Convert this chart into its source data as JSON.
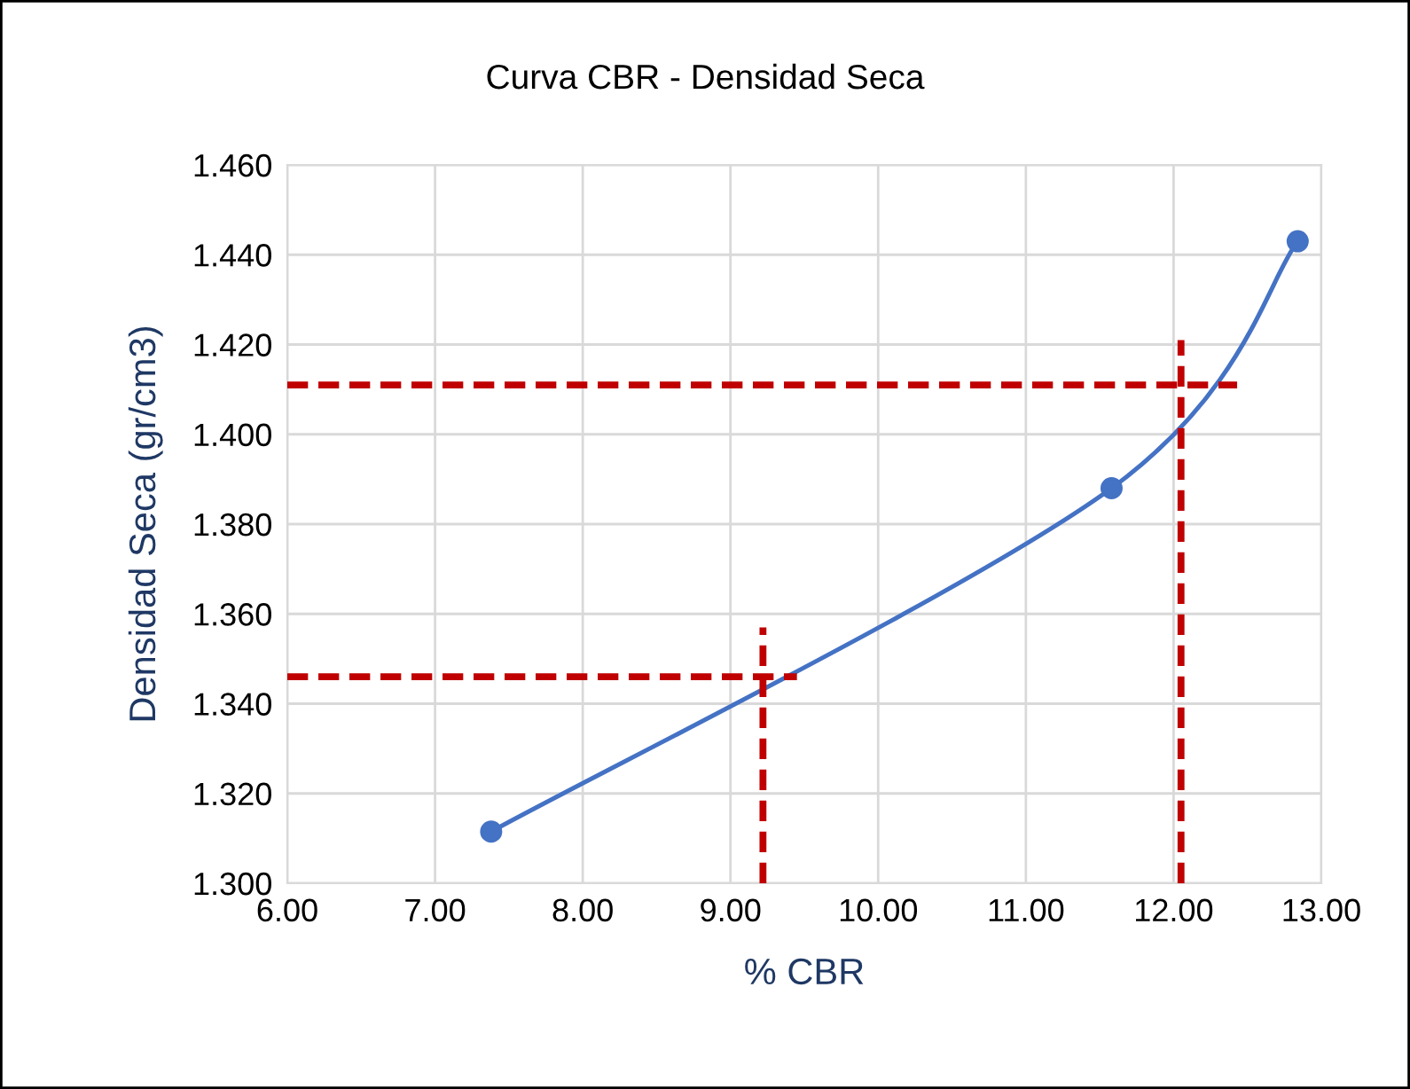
{
  "chart_data": {
    "type": "line",
    "title": "Curva CBR - Densidad Seca",
    "xlabel": "% CBR",
    "ylabel": "Densidad Seca (gr/cm3)",
    "series": [
      {
        "color": "#4472c4",
        "x": [
          7.38,
          11.58,
          12.84
        ],
        "values": [
          1.3115,
          1.388,
          1.443
        ],
        "marker": "circle",
        "line_style": "solid"
      },
      {
        "color": "#c00000",
        "x": [
          6.0,
          9.45
        ],
        "values": [
          1.346,
          1.346
        ],
        "marker": "none",
        "line_style": "dashed"
      },
      {
        "color": "#c00000",
        "x": [
          9.22,
          9.22
        ],
        "values": [
          1.3,
          1.357
        ],
        "marker": "none",
        "line_style": "dashed"
      },
      {
        "color": "#c00000",
        "x": [
          6.0,
          12.43
        ],
        "values": [
          1.411,
          1.411
        ],
        "marker": "none",
        "line_style": "dashed"
      },
      {
        "color": "#c00000",
        "x": [
          12.05,
          12.05
        ],
        "values": [
          1.3,
          1.421
        ],
        "marker": "none",
        "line_style": "dashed"
      }
    ],
    "xlim": [
      6.0,
      13.0
    ],
    "xticks": [
      {
        "value": 6,
        "label": "6.00"
      },
      {
        "value": 7,
        "label": "7.00"
      },
      {
        "value": 8,
        "label": "8.00"
      },
      {
        "value": 9,
        "label": "9.00"
      },
      {
        "value": 10,
        "label": "10.00"
      },
      {
        "value": 11,
        "label": "11.00"
      },
      {
        "value": 12,
        "label": "12.00"
      },
      {
        "value": 13,
        "label": "13.00"
      }
    ],
    "ylim": [
      1.3,
      1.46
    ],
    "yticks": [
      {
        "value": 1.3,
        "label": "1.300"
      },
      {
        "value": 1.32,
        "label": "1.320"
      },
      {
        "value": 1.34,
        "label": "1.340"
      },
      {
        "value": 1.36,
        "label": "1.360"
      },
      {
        "value": 1.38,
        "label": "1.380"
      },
      {
        "value": 1.4,
        "label": "1.400"
      },
      {
        "value": 1.42,
        "label": "1.420"
      },
      {
        "value": 1.44,
        "label": "1.440"
      },
      {
        "value": 1.46,
        "label": "1.460"
      }
    ],
    "grid": true,
    "legend": false
  }
}
